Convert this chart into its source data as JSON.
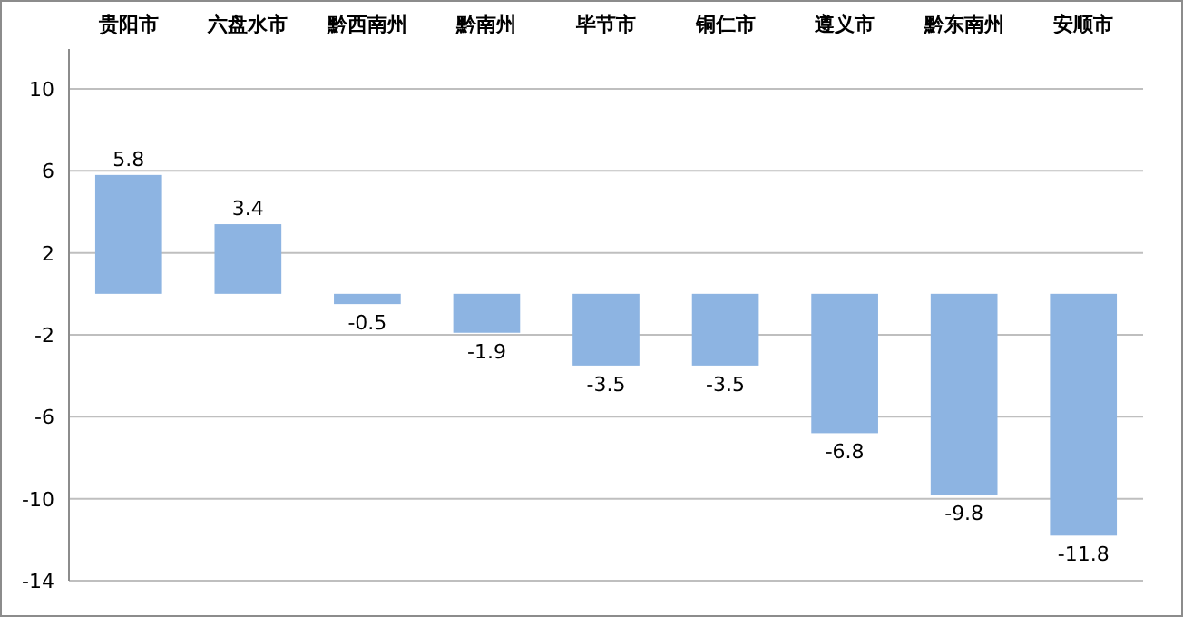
{
  "chart_data": {
    "type": "bar",
    "categories": [
      "贵阳市",
      "六盘水市",
      "黔西南州",
      "黔南州",
      "毕节市",
      "铜仁市",
      "遵义市",
      "黔东南州",
      "安顺市"
    ],
    "values": [
      5.8,
      3.4,
      -0.5,
      -1.9,
      -3.5,
      -3.5,
      -6.8,
      -9.8,
      -11.8
    ],
    "color": "#8db4e2",
    "ylim": [
      -14,
      10
    ],
    "yticks": [
      -14,
      -10,
      -6,
      -2,
      2,
      6,
      10
    ],
    "grid": "y",
    "data_labels": true
  }
}
